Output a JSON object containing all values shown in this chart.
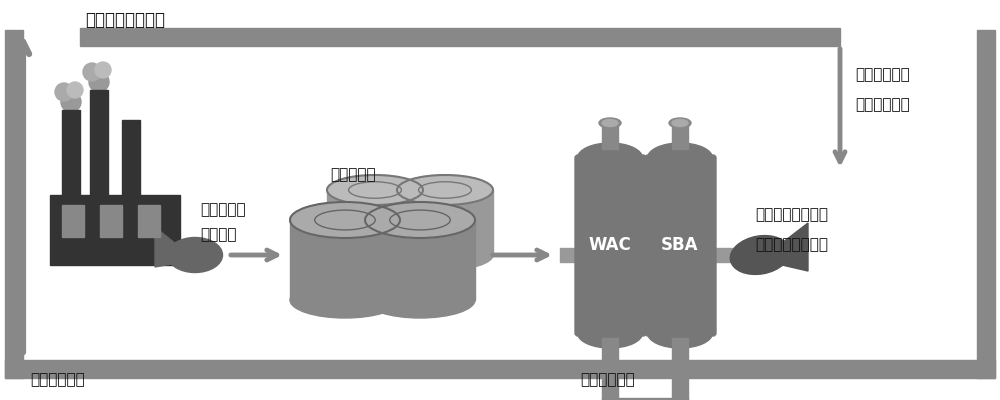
{
  "bg_color": "#ffffff",
  "gray_dark": "#333333",
  "gray_mid": "#888888",
  "gray_light": "#aaaaaa",
  "gray_col": "#777777",
  "texts": {
    "co2_emission": "企业排放二氧化碳",
    "label_top_right1": "用于复合型离",
    "label_top_right2": "子交换剂再生",
    "label_industry_water1": "工业废水与",
    "label_industry_water2": "生活污水",
    "label_sewage_plant": "污水处理厂",
    "label_wac": "WAC",
    "label_sba": "SBA",
    "label_carbon_cycle1": "二氧化碳循环再生",
    "label_carbon_cycle2": "工艺用于水体脱盐",
    "label_industry_source": "工业用水水源",
    "label_sewage_desalt": "污水处理脱盐"
  },
  "arrow_color": "#888888",
  "arrow_lw": 3.5
}
